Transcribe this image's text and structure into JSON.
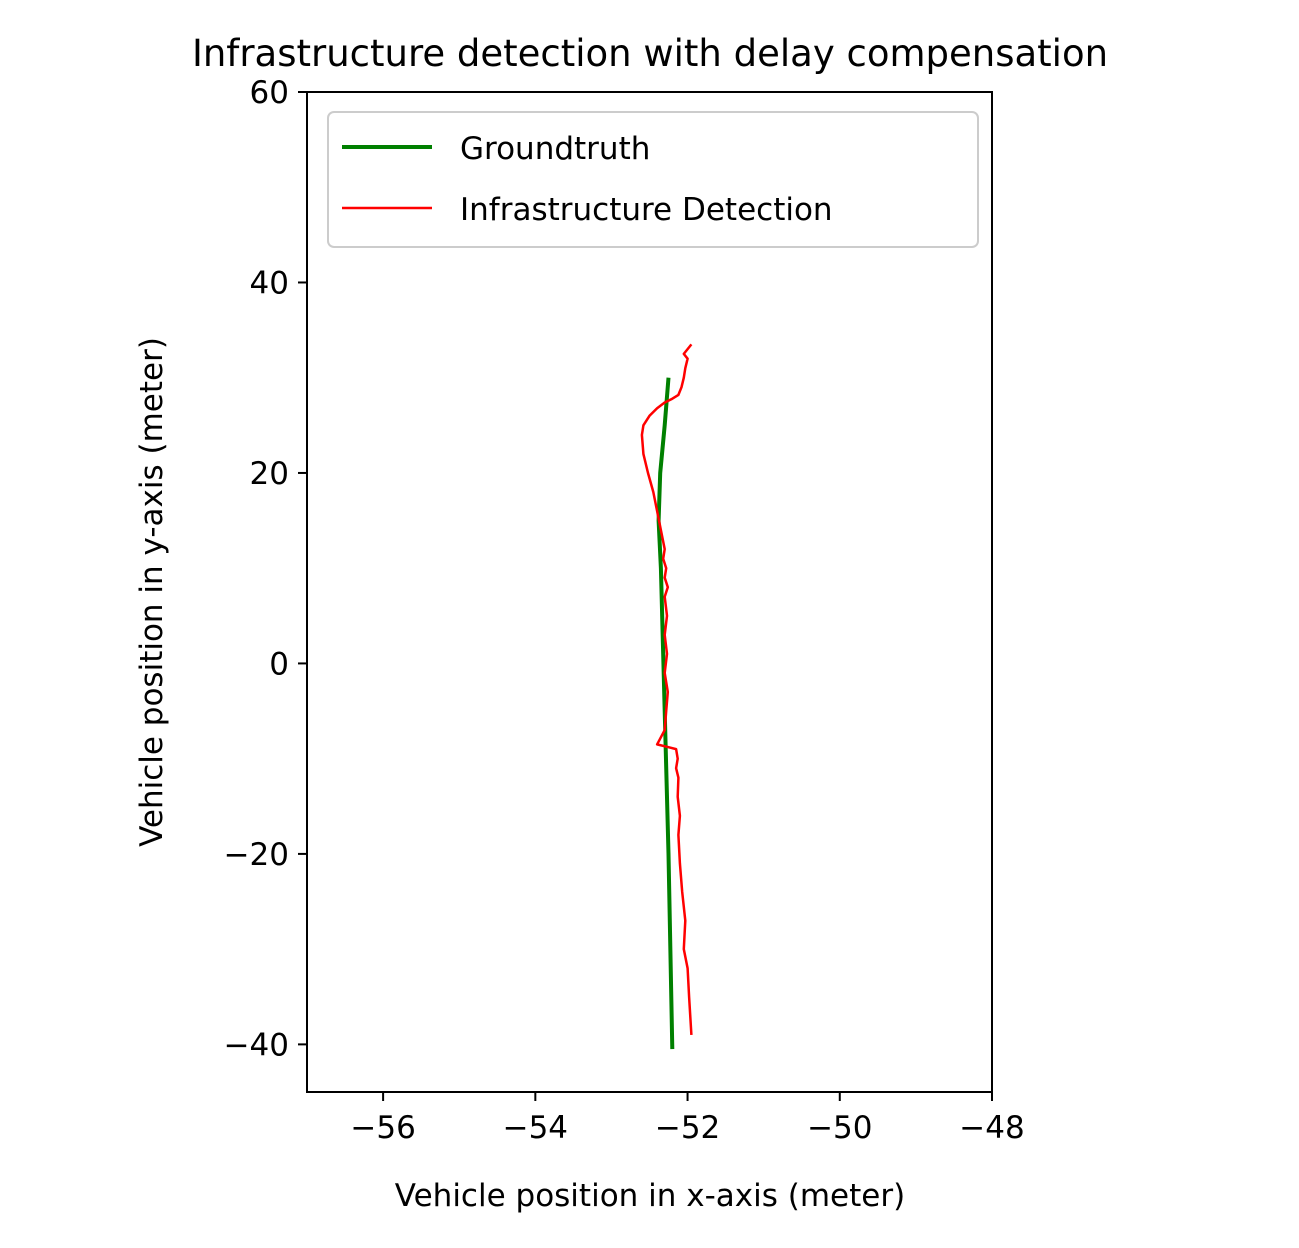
{
  "chart_data": {
    "type": "line",
    "title": "Infrastructure detection with delay compensation",
    "xlabel": "Vehicle position in x-axis (meter)",
    "ylabel": "Vehicle position in y-axis (meter)",
    "xlim": [
      -57,
      -48
    ],
    "ylim": [
      -45,
      60
    ],
    "xticks": [
      -56,
      -54,
      -52,
      -50,
      -48
    ],
    "yticks": [
      -40,
      -20,
      0,
      20,
      40,
      60
    ],
    "xtick_labels": [
      "−56",
      "−54",
      "−52",
      "−50",
      "−48"
    ],
    "ytick_labels": [
      "−40",
      "−20",
      "0",
      "20",
      "40",
      "60"
    ],
    "grid": false,
    "legend_position": "top-left",
    "series": [
      {
        "name": "Groundtruth",
        "color": "#008000",
        "x": [
          -52.2,
          -52.25,
          -52.3,
          -52.35,
          -52.38,
          -52.36,
          -52.3,
          -52.25
        ],
        "y": [
          -40.5,
          -20,
          -5,
          10,
          15,
          20,
          25,
          30
        ]
      },
      {
        "name": "Infrastructure Detection",
        "color": "#ff0000",
        "x": [
          -51.95,
          -51.98,
          -52.0,
          -52.05,
          -52.03,
          -52.07,
          -52.1,
          -52.12,
          -52.1,
          -52.13,
          -52.12,
          -52.15,
          -52.13,
          -52.15,
          -52.25,
          -52.4,
          -52.3,
          -52.28,
          -52.26,
          -52.3,
          -52.27,
          -52.3,
          -52.27,
          -52.3,
          -52.26,
          -52.3,
          -52.28,
          -52.32,
          -52.3,
          -52.35,
          -52.4,
          -52.45,
          -52.52,
          -52.58,
          -52.6,
          -52.58,
          -52.5,
          -52.4,
          -52.3,
          -52.2,
          -52.12,
          -52.08,
          -52.05,
          -52.03,
          -52.0,
          -52.05,
          -52.0,
          -51.95
        ],
        "y": [
          -39,
          -35,
          -32,
          -30,
          -27,
          -24,
          -21,
          -18,
          -16,
          -14,
          -12,
          -11,
          -10,
          -9,
          -8.8,
          -8.5,
          -7,
          -5,
          -3,
          -1,
          1,
          3,
          5,
          7,
          8,
          9,
          10,
          11,
          12,
          14,
          16,
          18,
          20,
          22,
          24,
          25,
          26,
          26.8,
          27.4,
          27.8,
          28.2,
          29,
          30,
          31,
          32,
          32.5,
          33,
          33.5
        ]
      }
    ]
  }
}
